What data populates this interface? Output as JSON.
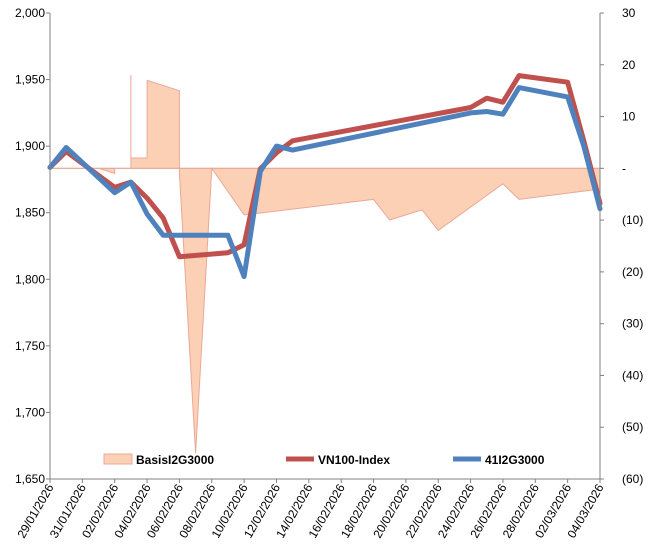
{
  "chart_data": {
    "type": "line",
    "x": [
      "29/01/2026",
      "30/01/2026",
      "02/02/2026",
      "03/02/2026",
      "04/02/2026",
      "05/02/2026",
      "06/02/2026",
      "09/02/2026",
      "10/02/2026",
      "11/02/2026",
      "12/02/2026",
      "13/02/2026",
      "24/02/2026",
      "25/02/2026",
      "26/02/2026",
      "27/02/2026",
      "02/03/2026",
      "03/03/2026",
      "04/03/2026"
    ],
    "x_tick_labels": [
      "29/01/2026",
      "31/01/2026",
      "02/02/2026",
      "04/02/2026",
      "06/02/2026",
      "08/02/2026",
      "10/02/2026",
      "12/02/2026",
      "14/02/2026",
      "16/02/2026",
      "18/02/2026",
      "20/02/2026",
      "22/02/2026",
      "24/02/2026",
      "26/02/2026",
      "28/02/2026",
      "02/03/2026",
      "04/03/2026"
    ],
    "y_left": {
      "min": 1650,
      "max": 2000,
      "ticks": [
        "1,650",
        "1,700",
        "1,750",
        "1,800",
        "1,850",
        "1,900",
        "1,950",
        "2,000"
      ]
    },
    "y_right": {
      "min": -60,
      "max": 30,
      "ticks": [
        "(60)",
        "(50)",
        "(40)",
        "(30)",
        "(20)",
        "(10)",
        "-",
        "10",
        "20",
        "30"
      ]
    },
    "series": [
      {
        "name": "BasisI2G3000",
        "type": "area",
        "axis": "right",
        "color": "#fcd0b4",
        "edge_color": "#e8a898",
        "points": [
          [
            "29/01/2026",
            0
          ],
          [
            "30/01/2026",
            0
          ],
          [
            "01/02/2026",
            0
          ],
          [
            "02/02/2026",
            -1
          ],
          [
            "02/02/2026",
            0
          ],
          [
            "03/02/2026",
            0
          ],
          [
            "03/02/2026",
            18
          ],
          [
            "03/02/2026",
            2
          ],
          [
            "04/02/2026",
            2
          ],
          [
            "04/02/2026",
            17
          ],
          [
            "06/02/2026",
            15
          ],
          [
            "06/02/2026",
            -1
          ],
          [
            "07/02/2026",
            -55
          ],
          [
            "08/02/2026",
            0
          ],
          [
            "10/02/2026",
            -9
          ],
          [
            "18/02/2026",
            -6
          ],
          [
            "19/02/2026",
            -10
          ],
          [
            "20/02/2026",
            -9
          ],
          [
            "21/02/2026",
            -8
          ],
          [
            "22/02/2026",
            -12
          ],
          [
            "26/02/2026",
            -3
          ],
          [
            "27/02/2026",
            -6
          ],
          [
            "04/03/2026",
            -4
          ],
          [
            "04/03/2026",
            0
          ]
        ]
      },
      {
        "name": "VN100-Index",
        "type": "line",
        "axis": "left",
        "color": "#c0504d",
        "values": [
          1884,
          1896,
          1869,
          1873,
          1861,
          1846,
          1817,
          1820,
          1826,
          1883,
          1895,
          1904,
          1929,
          1936,
          1933,
          1953,
          1948,
          1904,
          1857
        ]
      },
      {
        "name": "41I2G3000",
        "type": "line",
        "axis": "left",
        "color": "#4f81bd",
        "values": [
          1884,
          1899,
          1865,
          1873,
          1849,
          1833,
          1833,
          1833,
          1802,
          1881,
          1900,
          1897,
          1925,
          1926,
          1924,
          1944,
          1937,
          1900,
          1853
        ]
      }
    ],
    "legend": {
      "placement": "bottom-inside",
      "entries": [
        "BasisI2G3000",
        "VN100-Index",
        "41I2G3000"
      ]
    },
    "grid": false
  }
}
